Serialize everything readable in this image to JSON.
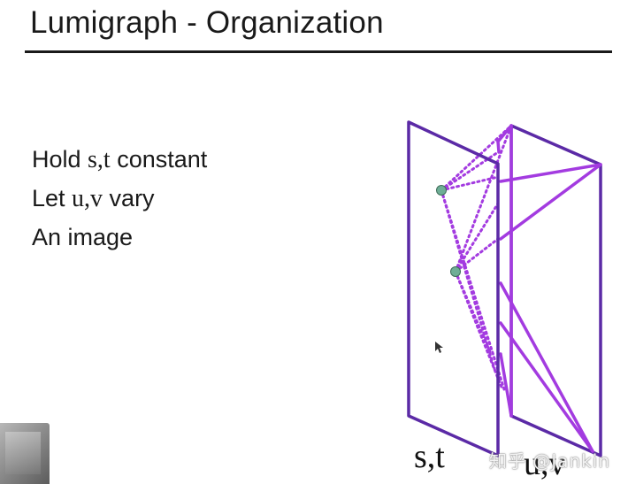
{
  "slide": {
    "title": "Lumigraph - Organization",
    "bullets": [
      {
        "prefix": "Hold ",
        "math": "s,t",
        "suffix": " constant"
      },
      {
        "prefix": "Let ",
        "math": "u,v",
        "suffix": " vary"
      },
      {
        "prefix": "An image",
        "math": "",
        "suffix": ""
      }
    ]
  },
  "diagram": {
    "plane_front_label": "s,t",
    "plane_back_label": "u,v",
    "colors": {
      "plane_outline": "#5b2aa6",
      "ray": "#a33be0",
      "sample_point": "#6fae96"
    }
  },
  "watermark": "知乎 @Jankin"
}
